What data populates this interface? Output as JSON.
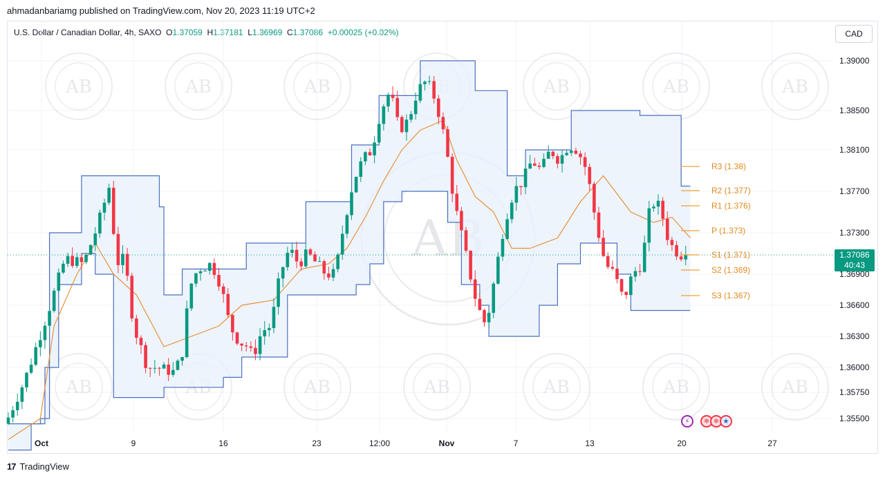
{
  "header": {
    "published": "ahmadanbariamg published on TradingView.com, Nov 20, 2023 11:19 UTC+2"
  },
  "symbol": {
    "name": "U.S. Dollar / Canadian Dollar, 4h, SAXO",
    "o_label": "O",
    "o": "1.37059",
    "h_label": "H",
    "h": "1.37181",
    "l_label": "L",
    "l": "1.36969",
    "c_label": "C",
    "c": "1.37086",
    "change": "+0.00025 (+0.02%)"
  },
  "currency_button": "CAD",
  "price_tag": {
    "price": "1.37086",
    "countdown": "40:43"
  },
  "footer": {
    "logo": "17",
    "brand": "TradingView"
  },
  "colors": {
    "up": "#089981",
    "down": "#f23645",
    "channel": "#4a6fbf",
    "channel_fill": "#e8f1fb",
    "midline": "#e8913a",
    "pivot": "#f0a030"
  },
  "watermark": {
    "text": "AB"
  },
  "chart_data": {
    "type": "candlestick",
    "symbol": "USDCAD",
    "timeframe": "4h",
    "y_axis": {
      "ticks": [
        1.355,
        1.3575,
        1.36,
        1.363,
        1.366,
        1.369,
        1.373,
        1.377,
        1.381,
        1.385,
        1.39
      ],
      "tick_labels": [
        "1.35500",
        "1.35750",
        "1.36000",
        "1.36300",
        "1.36600",
        "1.36900",
        "1.37300",
        "1.37700",
        "1.38100",
        "1.38500",
        "1.39000"
      ]
    },
    "x_axis": {
      "tick_labels": [
        "Oct",
        "9",
        "16",
        "23",
        "12:00",
        "Nov",
        "7",
        "13",
        "20",
        "27"
      ]
    },
    "last_price": 1.37086,
    "pivots": [
      {
        "label": "R3 (1.38)",
        "value": 1.38
      },
      {
        "label": "R2 (1.377)",
        "value": 1.377
      },
      {
        "label": "R1 (1.376)",
        "value": 1.376
      },
      {
        "label": "P (1.373)",
        "value": 1.373
      },
      {
        "label": "S1 (1.371)",
        "value": 1.371
      },
      {
        "label": "S2 (1.369)",
        "value": 1.369
      },
      {
        "label": "S3 (1.367)",
        "value": 1.367
      }
    ],
    "price_path": [
      [
        0,
        1.3545
      ],
      [
        4,
        1.3585
      ],
      [
        9,
        1.365
      ],
      [
        13,
        1.3705
      ],
      [
        17,
        1.37
      ],
      [
        20,
        1.3735
      ],
      [
        23,
        1.378
      ],
      [
        24,
        1.37
      ],
      [
        26,
        1.3705
      ],
      [
        28,
        1.364
      ],
      [
        31,
        1.36
      ],
      [
        33,
        1.36
      ],
      [
        37,
        1.3595
      ],
      [
        39,
        1.362
      ],
      [
        40,
        1.3675
      ],
      [
        42,
        1.3695
      ],
      [
        45,
        1.37
      ],
      [
        47,
        1.368
      ],
      [
        49,
        1.364
      ],
      [
        51,
        1.3625
      ],
      [
        53,
        1.362
      ],
      [
        54,
        1.361
      ],
      [
        56,
        1.3635
      ],
      [
        58,
        1.364
      ],
      [
        60,
        1.369
      ],
      [
        62,
        1.3715
      ],
      [
        64,
        1.37
      ],
      [
        66,
        1.371
      ],
      [
        68,
        1.37
      ],
      [
        70,
        1.369
      ],
      [
        72,
        1.369
      ],
      [
        74,
        1.374
      ],
      [
        76,
        1.378
      ],
      [
        78,
        1.38
      ],
      [
        80,
        1.381
      ],
      [
        82,
        1.385
      ],
      [
        84,
        1.387
      ],
      [
        86,
        1.383
      ],
      [
        88,
        1.384
      ],
      [
        90,
        1.387
      ],
      [
        92,
        1.388
      ],
      [
        94,
        1.386
      ],
      [
        96,
        1.382
      ],
      [
        98,
        1.376
      ],
      [
        100,
        1.372
      ],
      [
        102,
        1.368
      ],
      [
        103,
        1.366
      ],
      [
        105,
        1.364
      ],
      [
        107,
        1.369
      ],
      [
        109,
        1.374
      ],
      [
        111,
        1.377
      ],
      [
        113,
        1.378
      ],
      [
        115,
        1.38
      ],
      [
        117,
        1.379
      ],
      [
        119,
        1.381
      ],
      [
        121,
        1.38
      ],
      [
        123,
        1.3815
      ],
      [
        125,
        1.381
      ],
      [
        127,
        1.379
      ],
      [
        129,
        1.374
      ],
      [
        131,
        1.37
      ],
      [
        133,
        1.369
      ],
      [
        135,
        1.3665
      ],
      [
        137,
        1.369
      ],
      [
        139,
        1.37
      ],
      [
        141,
        1.376
      ],
      [
        143,
        1.3755
      ],
      [
        145,
        1.372
      ],
      [
        147,
        1.371
      ],
      [
        148,
        1.37086
      ]
    ],
    "channel": {
      "upper": [
        [
          0,
          1.3545
        ],
        [
          7,
          1.355
        ],
        [
          9,
          1.373
        ],
        [
          16,
          1.3785
        ],
        [
          29,
          1.3785
        ],
        [
          33,
          1.3755
        ],
        [
          34,
          1.367
        ],
        [
          37,
          1.367
        ],
        [
          38,
          1.3695
        ],
        [
          51,
          1.3695
        ],
        [
          52,
          1.372
        ],
        [
          64,
          1.372
        ],
        [
          65,
          1.376
        ],
        [
          74,
          1.376
        ],
        [
          75,
          1.3815
        ],
        [
          80,
          1.3815
        ],
        [
          81,
          1.3865
        ],
        [
          89,
          1.3865
        ],
        [
          90,
          1.39
        ],
        [
          101,
          1.39
        ],
        [
          102,
          1.387
        ],
        [
          108,
          1.387
        ],
        [
          109,
          1.3785
        ],
        [
          111,
          1.3785
        ],
        [
          113,
          1.381
        ],
        [
          122,
          1.381
        ],
        [
          123,
          1.385
        ],
        [
          137,
          1.385
        ],
        [
          138,
          1.3845
        ],
        [
          146,
          1.3845
        ],
        [
          147,
          1.3775
        ],
        [
          149,
          1.3775
        ]
      ],
      "lower": [
        [
          0,
          1.352
        ],
        [
          5,
          1.3545
        ],
        [
          8,
          1.36
        ],
        [
          11,
          1.368
        ],
        [
          16,
          1.371
        ],
        [
          19,
          1.369
        ],
        [
          23,
          1.357
        ],
        [
          30,
          1.357
        ],
        [
          34,
          1.358
        ],
        [
          43,
          1.358
        ],
        [
          47,
          1.359
        ],
        [
          51,
          1.361
        ],
        [
          58,
          1.361
        ],
        [
          61,
          1.367
        ],
        [
          73,
          1.367
        ],
        [
          76,
          1.368
        ],
        [
          79,
          1.37
        ],
        [
          82,
          1.376
        ],
        [
          86,
          1.377
        ],
        [
          92,
          1.377
        ],
        [
          96,
          1.374
        ],
        [
          99,
          1.368
        ],
        [
          103,
          1.366
        ],
        [
          105,
          1.363
        ],
        [
          113,
          1.363
        ],
        [
          116,
          1.366
        ],
        [
          120,
          1.37
        ],
        [
          125,
          1.372
        ],
        [
          130,
          1.372
        ],
        [
          133,
          1.369
        ],
        [
          136,
          1.3655
        ],
        [
          149,
          1.3655
        ]
      ],
      "mid": [
        [
          0,
          1.353
        ],
        [
          7,
          1.355
        ],
        [
          10,
          1.364
        ],
        [
          15,
          1.369
        ],
        [
          19,
          1.372
        ],
        [
          23,
          1.369
        ],
        [
          28,
          1.367
        ],
        [
          34,
          1.362
        ],
        [
          40,
          1.363
        ],
        [
          46,
          1.364
        ],
        [
          51,
          1.366
        ],
        [
          58,
          1.3665
        ],
        [
          64,
          1.3695
        ],
        [
          70,
          1.37
        ],
        [
          74,
          1.3715
        ],
        [
          78,
          1.3745
        ],
        [
          82,
          1.378
        ],
        [
          86,
          1.381
        ],
        [
          90,
          1.383
        ],
        [
          95,
          1.384
        ],
        [
          98,
          1.38
        ],
        [
          102,
          1.3765
        ],
        [
          106,
          1.375
        ],
        [
          110,
          1.3715
        ],
        [
          114,
          1.3715
        ],
        [
          120,
          1.3725
        ],
        [
          125,
          1.376
        ],
        [
          130,
          1.3785
        ],
        [
          136,
          1.375
        ],
        [
          141,
          1.374
        ],
        [
          145,
          1.3745
        ],
        [
          149,
          1.3725
        ]
      ]
    }
  }
}
